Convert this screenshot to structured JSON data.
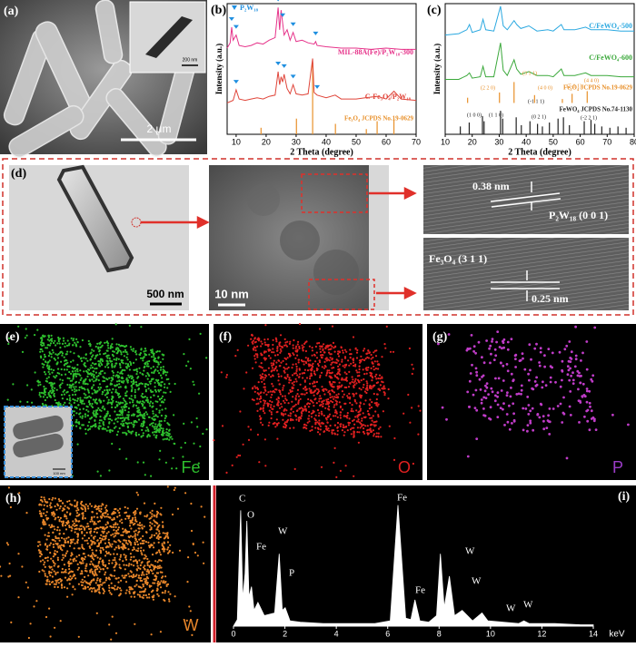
{
  "panels": {
    "a": {
      "label": "(a)",
      "scale_bar": "2 μm",
      "inset_scale_bar": "200 nm"
    },
    "d": {
      "label": "(d)",
      "scale_bar_1": "500 nm",
      "scale_bar_2": "10 nm",
      "spacing_1": "0.38 nm",
      "plane_1": "P₂W₁₈ (0 0 1)",
      "plane_2": "Fe₃O₄ (3 1 1)",
      "spacing_2": "0.25 nm"
    },
    "e": {
      "label": "(e)",
      "element": "Fe",
      "inset_scale_bar": "100 nm"
    },
    "f": {
      "label": "(f)",
      "element": "O"
    },
    "g": {
      "label": "(g)",
      "element": "P"
    },
    "h": {
      "label": "(h)",
      "element": "W"
    }
  },
  "chart_data": [
    {
      "type": "line",
      "label": "(b)",
      "xlabel": "2 Theta (degree)",
      "ylabel": "Intensity (a.u.)",
      "xlim": [
        7,
        70
      ],
      "xticks": [
        10,
        20,
        30,
        40,
        50,
        60,
        70
      ],
      "ylim": [
        0,
        100
      ],
      "legend": "P₂W₁₈",
      "marker_color": "#1f8fe0",
      "series": [
        {
          "name": "MIL-88A(Fe)/P₂W₁₈-300",
          "color": "#e6338a",
          "x": [
            7,
            8,
            8.5,
            9,
            10,
            11,
            13,
            15,
            17,
            19,
            21,
            23,
            24,
            24.5,
            25,
            25.5,
            26,
            27,
            28,
            29,
            30,
            32,
            34,
            36,
            36.5,
            37,
            40,
            45,
            50,
            55,
            60,
            65,
            70
          ],
          "values": [
            66,
            70,
            82,
            72,
            76,
            68,
            67,
            68,
            70,
            69,
            72,
            74,
            97,
            80,
            95,
            85,
            76,
            80,
            72,
            78,
            71,
            72,
            70,
            69,
            71,
            68,
            67,
            66,
            66,
            65,
            66,
            65,
            65
          ]
        },
        {
          "name": "C-Fe₃O₄/P₂W₁₈",
          "color": "#e0453a",
          "x": [
            7,
            8,
            9,
            10,
            11,
            13,
            15,
            17,
            19,
            21,
            23,
            24,
            24.5,
            25,
            25.5,
            26,
            27,
            28,
            29,
            30,
            32,
            34,
            35.5,
            36,
            37,
            40,
            43,
            45,
            50,
            53,
            57,
            60,
            62.6,
            65,
            70
          ],
          "values": [
            24,
            25,
            26,
            34,
            27,
            26,
            27,
            28,
            27,
            29,
            30,
            48,
            38,
            44,
            40,
            46,
            35,
            31,
            38,
            31,
            30,
            31,
            58,
            32,
            30,
            28,
            30,
            27,
            27,
            28,
            29,
            27,
            33,
            27,
            26
          ]
        }
      ],
      "references": [
        {
          "name": "Fe₃O₄ JCPDS No.19-0629",
          "color": "#e8902a",
          "x": [
            18.3,
            30.1,
            35.5,
            43.1,
            53.4,
            57,
            62.6
          ],
          "values": [
            5,
            12,
            55,
            8,
            4,
            10,
            12
          ]
        }
      ],
      "markers": {
        "x": [
          8.5,
          10,
          24,
          25.5,
          29,
          36.5,
          10,
          24,
          26,
          29,
          37
        ],
        "values": [
          84,
          78,
          99,
          87,
          80,
          73,
          36,
          50,
          48,
          40,
          32
        ]
      }
    },
    {
      "type": "line",
      "label": "(c)",
      "xlabel": "2 Theta (degree)",
      "ylabel": "Intensity (a.u.)",
      "xlim": [
        10,
        80
      ],
      "xticks": [
        10,
        20,
        30,
        40,
        50,
        60,
        70,
        80
      ],
      "ylim": [
        0,
        100
      ],
      "series": [
        {
          "name": "C/FeWO₄-500",
          "color": "#2aa8e0",
          "x": [
            10,
            15,
            18,
            19,
            20,
            23,
            24,
            25,
            28,
            30.5,
            31.5,
            33,
            35.5,
            36.5,
            38,
            41,
            44,
            48,
            50,
            53,
            54,
            58,
            62,
            64,
            70,
            75,
            80
          ],
          "values": [
            76,
            77,
            80,
            84,
            78,
            80,
            88,
            80,
            79,
            98,
            83,
            80,
            87,
            84,
            81,
            83,
            79,
            80,
            79,
            84,
            80,
            80,
            82,
            80,
            80,
            79,
            79
          ]
        },
        {
          "name": "C/FeWO₄-600",
          "color": "#3aa83a",
          "x": [
            10,
            15,
            18,
            19,
            20,
            23,
            24,
            25,
            28,
            30.5,
            31.5,
            33,
            35.5,
            36.5,
            38,
            41,
            44,
            48,
            50,
            53,
            54,
            58,
            62,
            64,
            70,
            75,
            80
          ],
          "values": [
            42,
            42,
            45,
            47,
            43,
            44,
            52,
            44,
            44,
            70,
            49,
            45,
            57,
            50,
            46,
            48,
            45,
            45,
            44,
            50,
            45,
            45,
            47,
            45,
            45,
            44,
            44
          ]
        }
      ],
      "references": [
        {
          "name": "Fe₃O₄ JCPDS No.19-0629",
          "color": "#e8902a",
          "x": [
            18.3,
            30.1,
            35.5,
            43.1,
            53.4,
            57,
            62.6
          ],
          "values": [
            28,
            32,
            40,
            30,
            27,
            31,
            33
          ]
        },
        {
          "name": "FeWO₄ JCPDS No.74-1130",
          "color": "#222222",
          "x": [
            15.6,
            18.9,
            23.8,
            24.4,
            30.5,
            31.3,
            36.3,
            38.2,
            41.4,
            44.2,
            46,
            48.6,
            51.8,
            53.8,
            56,
            61.5,
            64,
            65.4,
            68,
            71,
            74,
            77
          ],
          "values": [
            6,
            9,
            14,
            10,
            18,
            12,
            13,
            7,
            10,
            8,
            6,
            9,
            12,
            13,
            7,
            10,
            11,
            8,
            6,
            5,
            6,
            5
          ]
        }
      ],
      "annotations": [
        "(2 2 0)",
        "(3 1 1)",
        "(4 0 0)",
        "(5 1 1)",
        "(4 4 0)",
        "(-1 1 1)",
        "(1 0 0)",
        "(1 1 0)",
        "(0 2 1)",
        "(-2 2 1)"
      ]
    },
    {
      "type": "area",
      "label": "(i)",
      "xlabel": "keV",
      "color": "#ffffff",
      "xlim": [
        0,
        14
      ],
      "xticks": [
        0,
        2,
        4,
        6,
        8,
        10,
        12,
        14
      ],
      "ylim": [
        0,
        100
      ],
      "x": [
        0,
        0.15,
        0.28,
        0.36,
        0.45,
        0.52,
        0.6,
        0.7,
        0.8,
        0.95,
        1.2,
        1.6,
        1.78,
        1.9,
        2.01,
        2.2,
        2.6,
        3.5,
        4.5,
        5.5,
        6.1,
        6.4,
        6.7,
        6.9,
        7.06,
        7.25,
        7.6,
        7.9,
        8.05,
        8.2,
        8.4,
        8.6,
        8.9,
        9.3,
        9.67,
        9.9,
        10.5,
        11.1,
        11.3,
        11.5,
        12.5,
        13.5,
        14
      ],
      "values": [
        0,
        5,
        88,
        20,
        40,
        80,
        22,
        30,
        12,
        18,
        8,
        10,
        55,
        12,
        14,
        4,
        3,
        2,
        2,
        2,
        4,
        92,
        6,
        5,
        20,
        4,
        3,
        8,
        55,
        14,
        38,
        8,
        12,
        4,
        10,
        4,
        3,
        2,
        4,
        2,
        2,
        1,
        1
      ],
      "peak_labels": [
        "C",
        "O",
        "Fe",
        "W",
        "P",
        "Fe",
        "Fe",
        "W",
        "W",
        "W",
        "W"
      ]
    }
  ]
}
